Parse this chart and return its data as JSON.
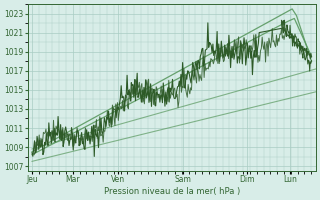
{
  "title": "",
  "xlabel": "Pression niveau de la mer( hPa )",
  "ylabel": "",
  "background_color": "#d8ede8",
  "plot_bg_color": "#d8ede8",
  "grid_color": "#aaccc4",
  "axis_color": "#336633",
  "text_color": "#336633",
  "line_color_dark": "#2d5a27",
  "line_color_light": "#5a9960",
  "yticks": [
    1007,
    1009,
    1011,
    1013,
    1015,
    1017,
    1019,
    1021,
    1023
  ],
  "xtick_labels": [
    "Jeu",
    "Mar",
    "Ven",
    "Sam",
    "Dim",
    "Lun"
  ],
  "xmax": 6.6,
  "ymin": 1006.5,
  "ymax": 1024.0
}
